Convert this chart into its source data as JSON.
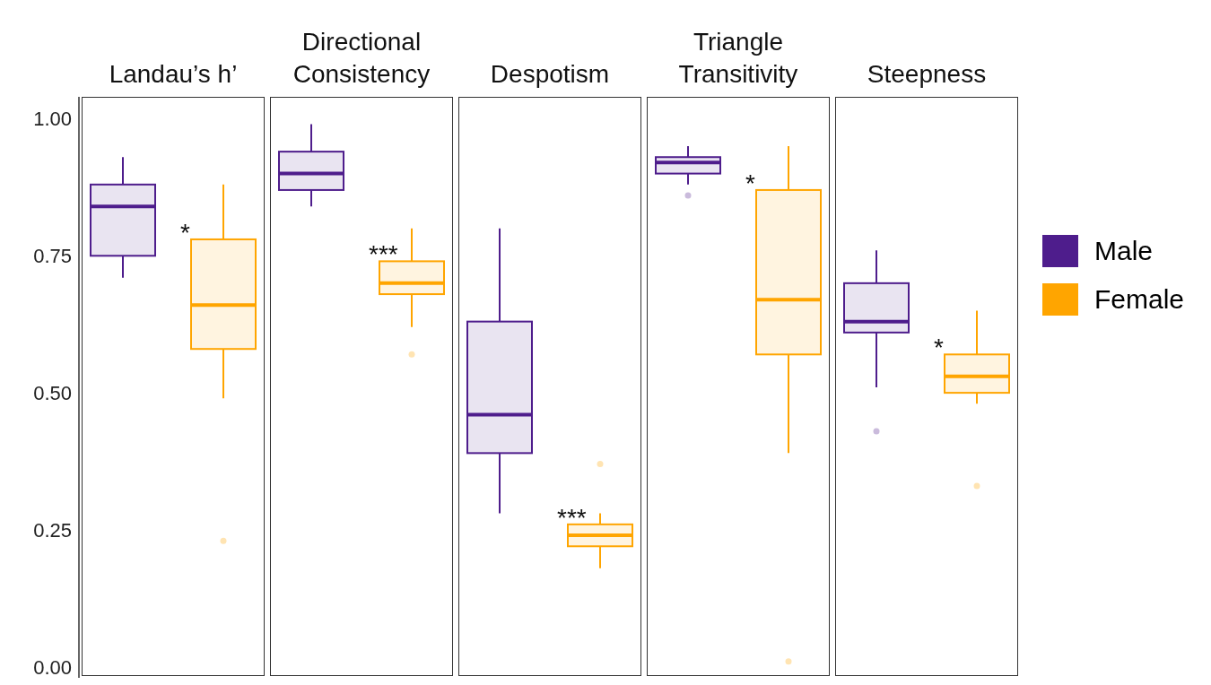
{
  "chart_data": {
    "type": "box",
    "categories": [
      "Landau’s h’",
      "Directional Consistency",
      "Despotism",
      "Triangle Transitivity",
      "Steepness"
    ],
    "ylim": [
      -0.02,
      1.04
    ],
    "yticks": [
      {
        "value": 0,
        "label": "0.00"
      },
      {
        "value": 0.25,
        "label": "0.25"
      },
      {
        "value": 0.5,
        "label": "0.50"
      },
      {
        "value": 0.75,
        "label": "0.75"
      },
      {
        "value": 1,
        "label": "1.00"
      }
    ],
    "grid": false,
    "legend": "right",
    "series": [
      {
        "name": "Male",
        "color": "#4e1d8c",
        "boxes": [
          {
            "low": 0.71,
            "q1": 0.75,
            "median": 0.84,
            "q3": 0.88,
            "high": 0.93
          },
          {
            "low": 0.84,
            "q1": 0.87,
            "median": 0.9,
            "q3": 0.94,
            "high": 0.99
          },
          {
            "low": 0.28,
            "q1": 0.39,
            "median": 0.46,
            "q3": 0.63,
            "high": 0.8
          },
          {
            "low": 0.88,
            "q1": 0.9,
            "median": 0.92,
            "q3": 0.93,
            "high": 0.95,
            "outliers": [
              0.86
            ]
          },
          {
            "low": 0.51,
            "q1": 0.61,
            "median": 0.63,
            "q3": 0.7,
            "high": 0.76,
            "outliers": [
              0.43
            ]
          }
        ]
      },
      {
        "name": "Female",
        "color": "#ffa500",
        "boxes": [
          {
            "low": 0.49,
            "q1": 0.58,
            "median": 0.66,
            "q3": 0.78,
            "high": 0.88,
            "outliers": [
              0.23
            ]
          },
          {
            "low": 0.62,
            "q1": 0.68,
            "median": 0.7,
            "q3": 0.74,
            "high": 0.8,
            "outliers": [
              0.57
            ]
          },
          {
            "low": 0.18,
            "q1": 0.22,
            "median": 0.24,
            "q3": 0.26,
            "high": 0.28,
            "outliers": [
              0.37
            ]
          },
          {
            "low": 0.39,
            "q1": 0.57,
            "median": 0.67,
            "q3": 0.87,
            "high": 0.95,
            "outliers": [
              0.01
            ]
          },
          {
            "low": 0.48,
            "q1": 0.5,
            "median": 0.53,
            "q3": 0.57,
            "high": 0.65,
            "outliers": [
              0.33
            ]
          }
        ]
      }
    ],
    "annotations": [
      "*",
      "***",
      "***",
      "*",
      "*"
    ]
  }
}
